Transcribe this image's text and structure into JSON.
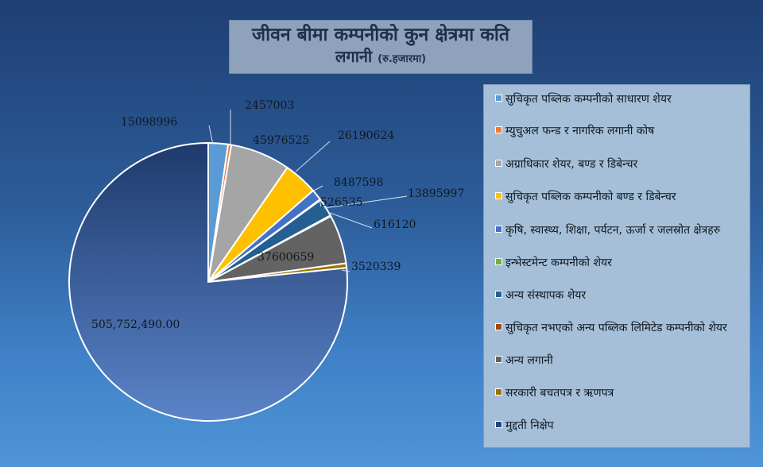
{
  "title": {
    "line1": "जीवन बीमा कम्पनीको कुन क्षेत्रमा कति",
    "line2": "लगानी",
    "unit": "(रु.हजारमा)"
  },
  "chart_data": {
    "type": "pie",
    "categories": [
      "सुचिकृत पब्लिक कम्पनीको साधारण शेयर",
      "म्युचुअल फन्ड र नागरिक लगानी कोष",
      "अग्राधिकार शेयर, बण्ड र डिबेन्चर",
      "सुचिकृत पब्लिक कम्पनीको बण्ड र डिबेन्चर",
      "कृषि, स्वास्थ्य, शिक्षा, पर्यटन, ऊर्जा र जलस्रोत क्षेत्रहरु",
      "इन्भेस्टमेन्ट कम्पनीको शेयर",
      "अन्य संस्थापक शेयर",
      "सुचिकृत नभएको अन्य पब्लिक लिमिटेड कम्पनीको शेयर",
      "अन्य लगानी",
      "सरकारी बचतपत्र र ऋणपत्र",
      "मुद्दती निक्षेप"
    ],
    "values": [
      15098996,
      2457003,
      45976525,
      26190624,
      8487598,
      526535,
      13895997,
      616120,
      37600659,
      3520339,
      505752490
    ],
    "data_labels": [
      "15098996",
      "2457003",
      "45976525",
      "26190624",
      "8487598",
      "526535",
      "13895997",
      "616120",
      "37600659",
      "3520339",
      "505,752,490.00"
    ],
    "colors": [
      "#5b9bd5",
      "#ed7d31",
      "#a5a5a5",
      "#ffc000",
      "#4472c4",
      "#70ad47",
      "#255e91",
      "#9e480e",
      "#636363",
      "#997300",
      "#26447a"
    ],
    "legend_position": "right"
  }
}
